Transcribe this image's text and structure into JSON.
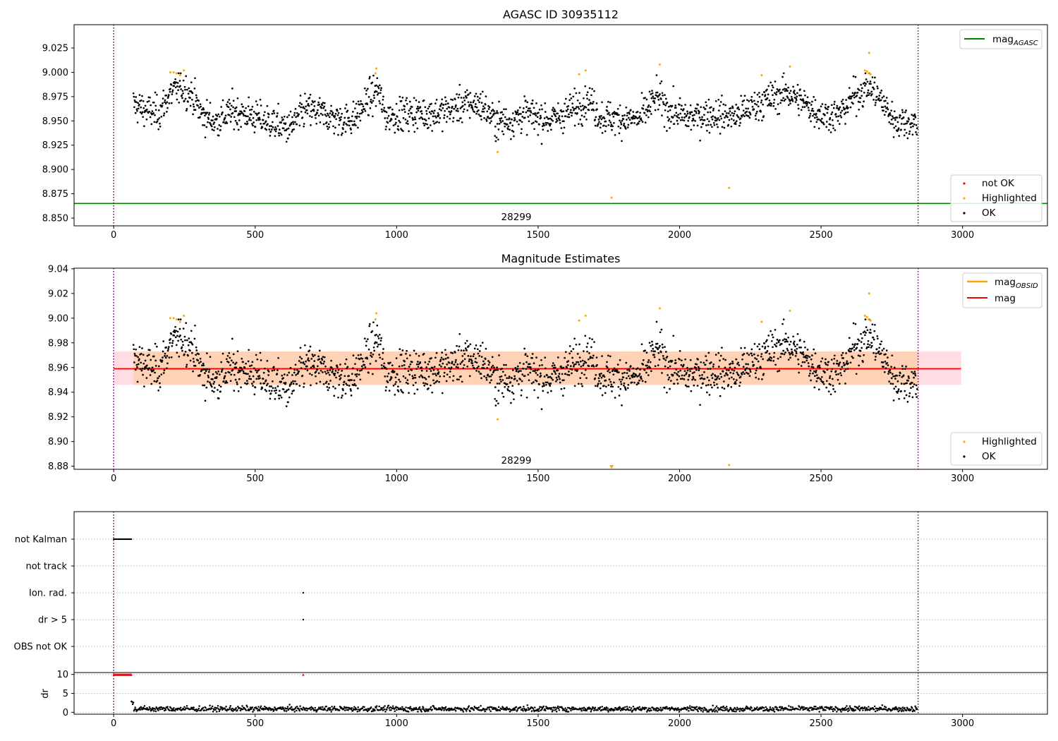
{
  "chart_data": [
    {
      "type": "scatter",
      "title": "AGASC ID 30935112",
      "xlim": [
        -140,
        3300
      ],
      "ylim": [
        8.842,
        9.049
      ],
      "xticks": [
        0,
        500,
        1000,
        1500,
        2000,
        2500,
        3000
      ],
      "yticks": [
        8.85,
        8.875,
        8.9,
        8.925,
        8.95,
        8.975,
        9.0,
        9.025
      ],
      "ytick_labels": [
        "8.850",
        "8.875",
        "8.900",
        "8.925",
        "8.950",
        "8.975",
        "9.000",
        "9.025"
      ],
      "vlines": [
        0,
        2843
      ],
      "hline": {
        "label": "mag_AGASC",
        "legend_main": "mag",
        "legend_sub": "AGASC",
        "value": 8.865,
        "color": "#008000"
      },
      "annotation": {
        "text": "28299",
        "x": 1425
      },
      "legend_points": [
        {
          "label": "not OK",
          "color": "#ff0000"
        },
        {
          "label": "Highlighted",
          "color": "#ffa500"
        },
        {
          "label": "OK",
          "color": "#000000"
        }
      ],
      "series": [
        {
          "name": "OK",
          "color": "#000000",
          "description": "dense time series x in [70, 2840], magnitude ~8.93-8.99 following the light curve profile"
        },
        {
          "name": "Highlighted",
          "color": "#ffa500",
          "points": [
            [
              200,
              9.0
            ],
            [
              212,
              9.0
            ],
            [
              222,
              8.999
            ],
            [
              235,
              8.997
            ],
            [
              248,
              9.002
            ],
            [
              928,
              9.004
            ],
            [
              925,
              8.999
            ],
            [
              1357,
              8.918
            ],
            [
              1645,
              8.998
            ],
            [
              1668,
              9.002
            ],
            [
              1760,
              8.871
            ],
            [
              1930,
              9.008
            ],
            [
              2175,
              8.881
            ],
            [
              2290,
              8.997
            ],
            [
              2390,
              9.006
            ],
            [
              2655,
              9.002
            ],
            [
              2662,
              9.001
            ],
            [
              2668,
              8.999
            ],
            [
              2670,
              9.02
            ],
            [
              2675,
              8.998
            ]
          ]
        }
      ]
    },
    {
      "type": "scatter",
      "title": "Magnitude Estimates",
      "xlim": [
        -140,
        3300
      ],
      "ylim": [
        8.8775,
        9.0405
      ],
      "xticks": [
        0,
        500,
        1000,
        1500,
        2000,
        2500,
        3000
      ],
      "yticks": [
        8.88,
        8.9,
        8.92,
        8.94,
        8.96,
        8.98,
        9.0,
        9.02,
        9.04
      ],
      "ytick_labels": [
        "8.88",
        "8.90",
        "8.92",
        "8.94",
        "8.96",
        "8.98",
        "9.00",
        "9.02",
        "9.04"
      ],
      "vlines": [
        0,
        2843
      ],
      "mag_line": {
        "label": "mag",
        "value": 8.959,
        "color": "#ff0000",
        "band": [
          8.946,
          8.973
        ],
        "band_color": "#ffdde3",
        "x": [
          0,
          2995
        ]
      },
      "obsid_line": {
        "label": "mag_OBSID",
        "legend_main": "mag",
        "legend_sub": "OBSID",
        "value": 8.959,
        "color": "#ffa500",
        "band": [
          8.946,
          8.973
        ],
        "band_color": "#ffd2b5",
        "x": [
          70,
          2843
        ]
      },
      "annotation": {
        "text": "28299",
        "x": 1425
      },
      "legend_lines": [
        {
          "label_main": "mag",
          "label_sub": "OBSID",
          "color": "#ffa500"
        },
        {
          "label_main": "mag",
          "label_sub": "",
          "color": "#ff0000"
        }
      ],
      "legend_points": [
        {
          "label": "Highlighted",
          "color": "#ffa500"
        },
        {
          "label": "OK",
          "color": "#000000"
        }
      ],
      "series": [
        {
          "name": "OK",
          "color": "#000000",
          "description": "same photometry as panel 1"
        },
        {
          "name": "Highlighted",
          "color": "#ffa500",
          "points": [
            [
              200,
              9.0
            ],
            [
              212,
              9.0
            ],
            [
              222,
              8.999
            ],
            [
              235,
              8.997
            ],
            [
              248,
              9.002
            ],
            [
              928,
              9.004
            ],
            [
              925,
              8.999
            ],
            [
              1357,
              8.918
            ],
            [
              1645,
              8.998
            ],
            [
              1668,
              9.002
            ],
            [
              1930,
              9.008
            ],
            [
              2175,
              8.881
            ],
            [
              2290,
              8.997
            ],
            [
              2390,
              9.006
            ],
            [
              2655,
              9.002
            ],
            [
              2662,
              9.001
            ],
            [
              2668,
              8.999
            ],
            [
              2670,
              9.02
            ],
            [
              2675,
              8.998
            ]
          ]
        },
        {
          "name": "Highlighted (off scale)",
          "color": "#ffa500",
          "points": [
            [
              1760,
              8.8775
            ]
          ]
        }
      ]
    },
    {
      "type": "scatter",
      "title": "",
      "xlim": [
        -140,
        3300
      ],
      "categories": [
        "not Kalman",
        "not track",
        "Ion. rad.",
        "dr > 5",
        "OBS not OK"
      ],
      "vlines": [
        0,
        2843
      ],
      "flags": {
        "not Kalman": {
          "x_range": [
            0,
            63
          ],
          "color": "#000000"
        },
        "Ion. rad.": {
          "x": [
            670
          ],
          "color": "#000000"
        },
        "dr > 5": {
          "x": [
            670
          ],
          "color": "#000000"
        }
      }
    },
    {
      "type": "scatter",
      "title": "",
      "ylabel": "dr",
      "xlim": [
        -140,
        3300
      ],
      "ylim": [
        -0.5,
        10.5
      ],
      "xticks": [
        0,
        500,
        1000,
        1500,
        2000,
        2500,
        3000
      ],
      "yticks": [
        0,
        5,
        10
      ],
      "ytick_labels": [
        "0",
        "5",
        "10"
      ],
      "vlines": [
        0,
        2843
      ],
      "clipped": {
        "color": "#ff0000",
        "x_range": [
          0,
          63
        ],
        "extra_x": [
          670
        ],
        "value": 10
      },
      "series": [
        {
          "name": "dr",
          "color": "#000000",
          "description": "dr ~0.2-2.5 for x in [63, 2840]"
        }
      ]
    }
  ]
}
